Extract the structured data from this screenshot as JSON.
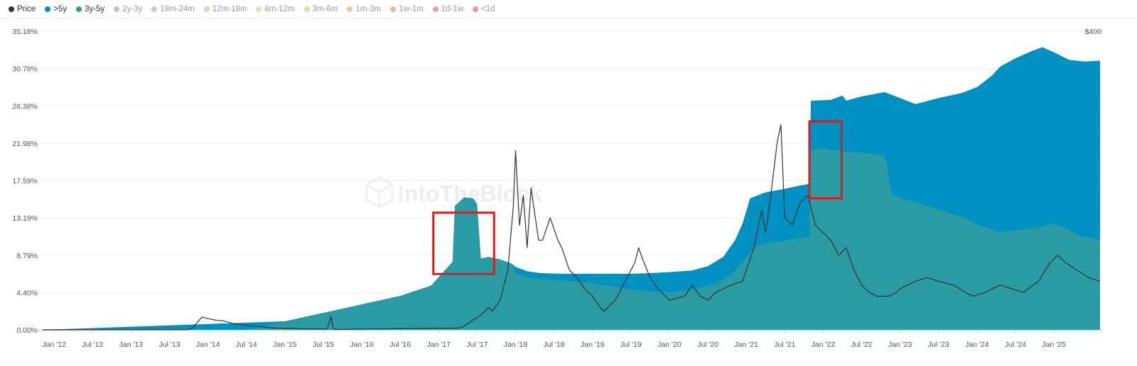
{
  "legend": [
    {
      "label": "Price",
      "color": "#333333",
      "active": true
    },
    {
      "label": ">5y",
      "color": "#0091c2",
      "active": true
    },
    {
      "label": "3y-5y",
      "color": "#2a9aa3",
      "active": true
    },
    {
      "label": "2y-3y",
      "color": "#a7cfc8",
      "active": false
    },
    {
      "label": "18m-24m",
      "color": "#b5d6b3",
      "active": false
    },
    {
      "label": "12m-18m",
      "color": "#cfe0a8",
      "active": false
    },
    {
      "label": "6m-12m",
      "color": "#e8e3a0",
      "active": false
    },
    {
      "label": "3m-6m",
      "color": "#f0d79a",
      "active": false
    },
    {
      "label": "1m-3m",
      "color": "#f0c79a",
      "active": false
    },
    {
      "label": "1w-1m",
      "color": "#eeb79a",
      "active": false
    },
    {
      "label": "1d-1w",
      "color": "#eca69a",
      "active": false
    },
    {
      "label": "<1d",
      "color": "#ea9797",
      "active": false
    }
  ],
  "watermark": "IntoTheBlock",
  "chart_data": {
    "type": "area",
    "stacked": true,
    "colors": {
      ">5y": "#0091c2",
      "3y-5y": "#2a9aa3",
      "Price": "#333333",
      "highlight": "#d42020"
    },
    "y_left_ticks": [
      "35.18%",
      "30.78%",
      "26.38%",
      "21.98%",
      "17.59%",
      "13.19%",
      "8.79%",
      "4.40%",
      "0.00%"
    ],
    "y_left_range": [
      0,
      35.18
    ],
    "y_right_ticks": [
      "$400"
    ],
    "x_ticks": [
      "Jan '12",
      "Jul '12",
      "Jan '13",
      "Jul '13",
      "Jan '14",
      "Jul '14",
      "Jan '15",
      "Jul '15",
      "Jan '16",
      "Jul '16",
      "Jan '17",
      "Jul '17",
      "Jan '18",
      "Jul '18",
      "Jan '19",
      "Jul '19",
      "Jan '20",
      "Jul '20",
      "Jan '21",
      "Jul '21",
      "Jan '22",
      "Jul '22",
      "Jan '23",
      "Jul '23",
      "Jan '24",
      "Jul '24",
      "Jan '25"
    ],
    "x_range": [
      2011.85,
      2025.6
    ],
    "grid": true,
    "legend_position": "top-left",
    "series": [
      {
        "name": "3y-5y",
        "points": [
          [
            2011.85,
            0
          ],
          [
            2014.5,
            0
          ],
          [
            2014.8,
            0.5
          ],
          [
            2015.0,
            1.0
          ],
          [
            2015.5,
            2.0
          ],
          [
            2016.0,
            3.0
          ],
          [
            2016.5,
            4.0
          ],
          [
            2016.9,
            5.2
          ],
          [
            2017.0,
            6.2
          ],
          [
            2017.1,
            7.2
          ],
          [
            2017.18,
            8.0
          ],
          [
            2017.21,
            14.6
          ],
          [
            2017.33,
            15.6
          ],
          [
            2017.45,
            15.5
          ],
          [
            2017.5,
            14.8
          ],
          [
            2017.55,
            8.4
          ],
          [
            2017.65,
            8.6
          ],
          [
            2017.8,
            8.3
          ],
          [
            2017.95,
            7.8
          ],
          [
            2018.0,
            6.7
          ],
          [
            2018.15,
            6.2
          ],
          [
            2018.3,
            6.0
          ],
          [
            2018.6,
            5.8
          ],
          [
            2019.0,
            5.5
          ],
          [
            2019.5,
            4.8
          ],
          [
            2019.8,
            4.5
          ],
          [
            2020.0,
            4.5
          ],
          [
            2020.2,
            4.6
          ],
          [
            2020.4,
            5.0
          ],
          [
            2020.6,
            5.5
          ],
          [
            2020.8,
            6.5
          ],
          [
            2020.95,
            8.0
          ],
          [
            2021.05,
            9.0
          ],
          [
            2021.1,
            9.8
          ],
          [
            2021.3,
            10.2
          ],
          [
            2021.5,
            10.5
          ],
          [
            2021.7,
            10.8
          ],
          [
            2021.82,
            11.0
          ],
          [
            2021.84,
            21.0
          ],
          [
            2021.95,
            21.5
          ],
          [
            2022.1,
            21.2
          ],
          [
            2022.3,
            21.0
          ],
          [
            2022.6,
            20.8
          ],
          [
            2022.8,
            20.5
          ],
          [
            2022.9,
            16.0
          ],
          [
            2023.0,
            15.5
          ],
          [
            2023.3,
            14.8
          ],
          [
            2023.5,
            14.2
          ],
          [
            2023.7,
            13.6
          ],
          [
            2023.9,
            13.0
          ],
          [
            2024.0,
            12.4
          ],
          [
            2024.3,
            11.5
          ],
          [
            2024.55,
            11.8
          ],
          [
            2024.8,
            12.1
          ],
          [
            2025.0,
            12.5
          ],
          [
            2025.2,
            11.8
          ],
          [
            2025.35,
            11.0
          ],
          [
            2025.5,
            10.8
          ],
          [
            2025.6,
            10.6
          ]
        ]
      },
      {
        "name": ">5y",
        "points": [
          [
            2011.85,
            0
          ],
          [
            2015.0,
            1.0
          ],
          [
            2015.5,
            2.0
          ],
          [
            2016.0,
            3.0
          ],
          [
            2016.5,
            4.0
          ],
          [
            2016.9,
            5.2
          ],
          [
            2017.0,
            6.2
          ],
          [
            2017.1,
            7.2
          ],
          [
            2017.18,
            8.0
          ],
          [
            2017.55,
            8.4
          ],
          [
            2017.65,
            8.6
          ],
          [
            2017.8,
            8.3
          ],
          [
            2017.95,
            7.8
          ],
          [
            2018.0,
            7.4
          ],
          [
            2018.15,
            6.9
          ],
          [
            2018.3,
            6.7
          ],
          [
            2018.6,
            6.6
          ],
          [
            2019.0,
            6.6
          ],
          [
            2019.5,
            6.6
          ],
          [
            2019.8,
            6.7
          ],
          [
            2020.0,
            6.8
          ],
          [
            2020.3,
            7.0
          ],
          [
            2020.5,
            7.5
          ],
          [
            2020.7,
            8.6
          ],
          [
            2020.85,
            10.5
          ],
          [
            2020.95,
            12.5
          ],
          [
            2021.05,
            15.5
          ],
          [
            2021.25,
            16.2
          ],
          [
            2021.5,
            16.6
          ],
          [
            2021.7,
            17.0
          ],
          [
            2021.82,
            17.2
          ],
          [
            2021.84,
            27.0
          ],
          [
            2022.1,
            27.1
          ],
          [
            2022.25,
            27.6
          ],
          [
            2022.3,
            27.0
          ],
          [
            2022.5,
            27.5
          ],
          [
            2022.8,
            28.0
          ],
          [
            2023.0,
            27.3
          ],
          [
            2023.2,
            26.6
          ],
          [
            2023.5,
            27.3
          ],
          [
            2023.8,
            27.9
          ],
          [
            2024.0,
            28.6
          ],
          [
            2024.2,
            30.0
          ],
          [
            2024.3,
            31.0
          ],
          [
            2024.5,
            32.0
          ],
          [
            2024.7,
            32.8
          ],
          [
            2024.85,
            33.3
          ],
          [
            2025.0,
            32.7
          ],
          [
            2025.2,
            31.8
          ],
          [
            2025.4,
            31.6
          ],
          [
            2025.6,
            31.7
          ]
        ]
      },
      {
        "name": "Price",
        "axis": "right",
        "points": [
          [
            2011.85,
            0.1
          ],
          [
            2013.75,
            0.3
          ],
          [
            2013.8,
            2.5
          ],
          [
            2013.92,
            17.0
          ],
          [
            2014.0,
            15.0
          ],
          [
            2014.1,
            13.0
          ],
          [
            2014.2,
            12.0
          ],
          [
            2014.35,
            8.0
          ],
          [
            2014.5,
            6.0
          ],
          [
            2014.6,
            5.0
          ],
          [
            2014.75,
            3.5
          ],
          [
            2014.85,
            2.5
          ],
          [
            2015.0,
            2.0
          ],
          [
            2015.3,
            1.0
          ],
          [
            2015.55,
            1.0
          ],
          [
            2015.6,
            18.0
          ],
          [
            2015.63,
            1.0
          ],
          [
            2015.7,
            0.5
          ],
          [
            2016.0,
            1.0
          ],
          [
            2016.5,
            1.5
          ],
          [
            2016.8,
            1.8
          ],
          [
            2017.0,
            2.0
          ],
          [
            2017.2,
            2.0
          ],
          [
            2017.3,
            3.0
          ],
          [
            2017.4,
            10.0
          ],
          [
            2017.55,
            20.0
          ],
          [
            2017.65,
            30.0
          ],
          [
            2017.7,
            25.0
          ],
          [
            2017.8,
            40.0
          ],
          [
            2017.9,
            80.0
          ],
          [
            2017.97,
            165.0
          ],
          [
            2018.0,
            240.0
          ],
          [
            2018.05,
            140.0
          ],
          [
            2018.1,
            180.0
          ],
          [
            2018.15,
            110.0
          ],
          [
            2018.2,
            190.0
          ],
          [
            2018.3,
            120.0
          ],
          [
            2018.35,
            120.0
          ],
          [
            2018.45,
            150.0
          ],
          [
            2018.55,
            120.0
          ],
          [
            2018.6,
            110.0
          ],
          [
            2018.7,
            80.0
          ],
          [
            2018.8,
            70.0
          ],
          [
            2018.9,
            55.0
          ],
          [
            2019.0,
            45.0
          ],
          [
            2019.1,
            30.0
          ],
          [
            2019.15,
            25.0
          ],
          [
            2019.3,
            40.0
          ],
          [
            2019.45,
            70.0
          ],
          [
            2019.5,
            80.0
          ],
          [
            2019.55,
            90.0
          ],
          [
            2019.6,
            110.0
          ],
          [
            2019.65,
            95.0
          ],
          [
            2019.75,
            70.0
          ],
          [
            2019.85,
            55.0
          ],
          [
            2020.0,
            40.0
          ],
          [
            2020.2,
            45.0
          ],
          [
            2020.3,
            60.0
          ],
          [
            2020.4,
            45.0
          ],
          [
            2020.5,
            40.0
          ],
          [
            2020.6,
            50.0
          ],
          [
            2020.8,
            60.0
          ],
          [
            2020.95,
            65.0
          ],
          [
            2021.0,
            80.0
          ],
          [
            2021.1,
            110.0
          ],
          [
            2021.2,
            160.0
          ],
          [
            2021.25,
            130.0
          ],
          [
            2021.3,
            165.0
          ],
          [
            2021.4,
            250.0
          ],
          [
            2021.45,
            275.0
          ],
          [
            2021.5,
            150.0
          ],
          [
            2021.6,
            140.0
          ],
          [
            2021.7,
            170.0
          ],
          [
            2021.8,
            180.0
          ],
          [
            2021.9,
            140.0
          ],
          [
            2022.0,
            130.0
          ],
          [
            2022.1,
            120.0
          ],
          [
            2022.2,
            100.0
          ],
          [
            2022.3,
            110.0
          ],
          [
            2022.4,
            80.0
          ],
          [
            2022.5,
            60.0
          ],
          [
            2022.6,
            50.0
          ],
          [
            2022.7,
            45.0
          ],
          [
            2022.85,
            45.0
          ],
          [
            2022.95,
            50.0
          ],
          [
            2023.0,
            55.0
          ],
          [
            2023.2,
            65.0
          ],
          [
            2023.35,
            70.0
          ],
          [
            2023.5,
            65.0
          ],
          [
            2023.7,
            60.0
          ],
          [
            2023.85,
            50.0
          ],
          [
            2023.95,
            45.0
          ],
          [
            2024.1,
            50.0
          ],
          [
            2024.3,
            60.0
          ],
          [
            2024.45,
            55.0
          ],
          [
            2024.6,
            50.0
          ],
          [
            2024.8,
            65.0
          ],
          [
            2024.95,
            90.0
          ],
          [
            2025.05,
            100.0
          ],
          [
            2025.15,
            90.0
          ],
          [
            2025.3,
            80.0
          ],
          [
            2025.45,
            70.0
          ],
          [
            2025.6,
            65.0
          ]
        ]
      }
    ],
    "price_axis_max": 400,
    "highlights": [
      {
        "x": [
          2016.93,
          2017.72
        ],
        "y": [
          6.58,
          13.8
        ]
      },
      {
        "x": [
          2021.82,
          2022.24
        ],
        "y": [
          15.5,
          24.55
        ]
      }
    ]
  }
}
